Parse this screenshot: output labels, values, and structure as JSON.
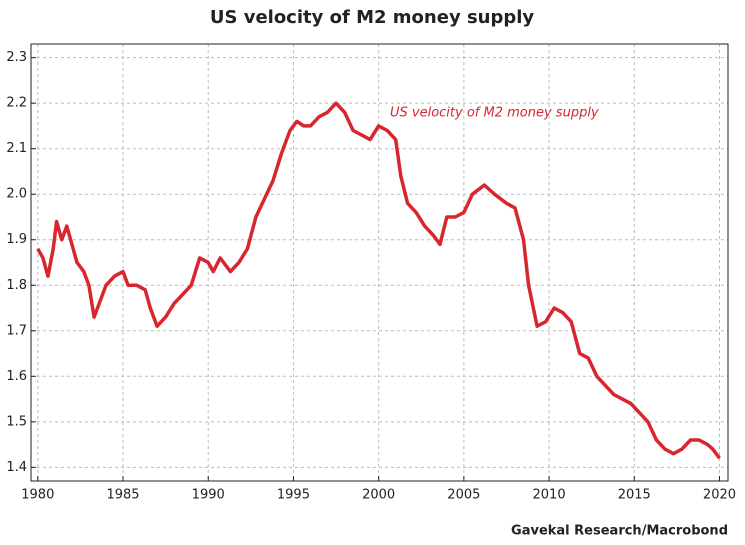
{
  "chart_data": {
    "type": "line",
    "title": "US velocity of M2 money supply",
    "source": "Gavekal Research/Macrobond",
    "x": [
      1980.0,
      1980.3,
      1980.6,
      1980.9,
      1981.1,
      1981.4,
      1981.7,
      1982.0,
      1982.3,
      1982.7,
      1983.0,
      1983.3,
      1983.6,
      1984.0,
      1984.5,
      1985.0,
      1985.3,
      1985.8,
      1986.3,
      1986.6,
      1987.0,
      1987.5,
      1988.0,
      1988.5,
      1989.0,
      1989.5,
      1990.0,
      1990.3,
      1990.7,
      1991.3,
      1991.8,
      1992.3,
      1992.8,
      1993.3,
      1993.8,
      1994.3,
      1994.8,
      1995.2,
      1995.6,
      1996.0,
      1996.5,
      1997.0,
      1997.5,
      1998.0,
      1998.5,
      1999.0,
      1999.5,
      2000.0,
      2000.5,
      2001.0,
      2001.3,
      2001.7,
      2002.2,
      2002.7,
      2003.2,
      2003.6,
      2004.0,
      2004.5,
      2005.0,
      2005.5,
      2006.2,
      2006.8,
      2007.5,
      2008.0,
      2008.5,
      2008.8,
      2009.3,
      2009.8,
      2010.3,
      2010.8,
      2011.3,
      2011.8,
      2012.3,
      2012.8,
      2013.3,
      2013.8,
      2014.3,
      2014.8,
      2015.3,
      2015.8,
      2016.3,
      2016.8,
      2017.3,
      2017.8,
      2018.3,
      2018.8,
      2019.3,
      2019.6,
      2020.0
    ],
    "series": [
      {
        "name": "US velocity of M2 money supply",
        "color": "#d7262e",
        "values": [
          1.88,
          1.86,
          1.82,
          1.88,
          1.94,
          1.9,
          1.93,
          1.89,
          1.85,
          1.83,
          1.8,
          1.73,
          1.76,
          1.8,
          1.82,
          1.83,
          1.8,
          1.8,
          1.79,
          1.75,
          1.71,
          1.73,
          1.76,
          1.78,
          1.8,
          1.86,
          1.85,
          1.83,
          1.86,
          1.83,
          1.85,
          1.88,
          1.95,
          1.99,
          2.03,
          2.09,
          2.14,
          2.16,
          2.15,
          2.15,
          2.17,
          2.18,
          2.2,
          2.18,
          2.14,
          2.13,
          2.12,
          2.15,
          2.14,
          2.12,
          2.04,
          1.98,
          1.96,
          1.93,
          1.91,
          1.89,
          1.95,
          1.95,
          1.96,
          2.0,
          2.02,
          2.0,
          1.98,
          1.97,
          1.9,
          1.8,
          1.71,
          1.72,
          1.75,
          1.74,
          1.72,
          1.65,
          1.64,
          1.6,
          1.58,
          1.56,
          1.55,
          1.54,
          1.52,
          1.5,
          1.46,
          1.44,
          1.43,
          1.44,
          1.46,
          1.46,
          1.45,
          1.44,
          1.42
        ]
      }
    ],
    "xlim": [
      1979.6,
      2020.5
    ],
    "xticks": [
      1980,
      1985,
      1990,
      1995,
      2000,
      2005,
      2010,
      2015,
      2020
    ],
    "ylim": [
      1.37,
      2.33
    ],
    "yticks": [
      1.4,
      1.5,
      1.6,
      1.7,
      1.8,
      1.9,
      {
        "value": 2.0,
        "label": "2.0"
      },
      2.1,
      2.2,
      2.3
    ],
    "grid": true
  }
}
